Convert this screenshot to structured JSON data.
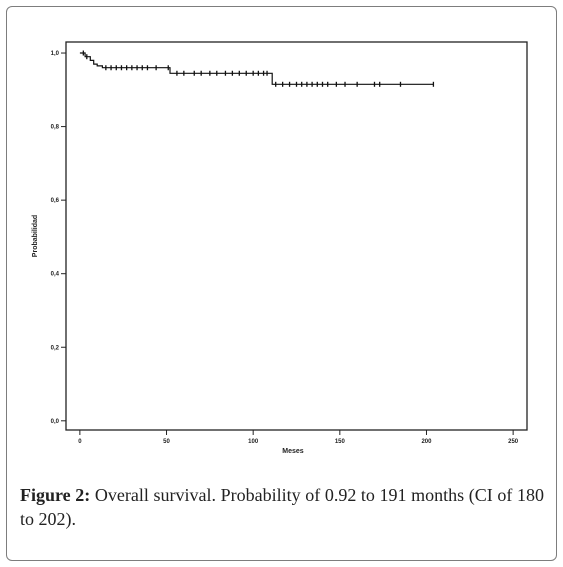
{
  "chart_data": {
    "type": "line",
    "title": "",
    "xlabel": "Meses",
    "ylabel": "Probabilidad",
    "xlim": [
      -8,
      258
    ],
    "ylim": [
      -0.025,
      1.03
    ],
    "x_ticks": [
      0,
      50,
      100,
      150,
      200,
      250
    ],
    "x_tick_labels": [
      "0",
      "50",
      "100",
      "150",
      "200",
      "250"
    ],
    "y_ticks": [
      0.0,
      0.2,
      0.4,
      0.6,
      0.8,
      1.0
    ],
    "y_tick_labels": [
      "0,0",
      "0,2",
      "0,4",
      "0,6",
      "0,8",
      "1,0"
    ],
    "grid": false,
    "series": [
      {
        "step_x": [
          0,
          3,
          6,
          8,
          10,
          13,
          52,
          111,
          204
        ],
        "step_y": [
          1.0,
          0.99,
          0.98,
          0.97,
          0.965,
          0.96,
          0.945,
          0.915,
          0.915
        ],
        "censored_x": [
          2,
          4,
          15,
          18,
          21,
          24,
          27,
          30,
          33,
          36,
          39,
          44,
          51,
          56,
          60,
          66,
          70,
          75,
          79,
          84,
          88,
          92,
          96,
          100,
          103,
          106,
          108,
          113,
          117,
          121,
          125,
          128,
          131,
          134,
          137,
          140,
          143,
          148,
          153,
          160,
          170,
          173,
          185,
          204
        ]
      }
    ]
  },
  "caption": {
    "label": "Figure 2:",
    "text": " Overall survival. Probability of 0.92 to 191 months (CI of 180 to 202)."
  }
}
